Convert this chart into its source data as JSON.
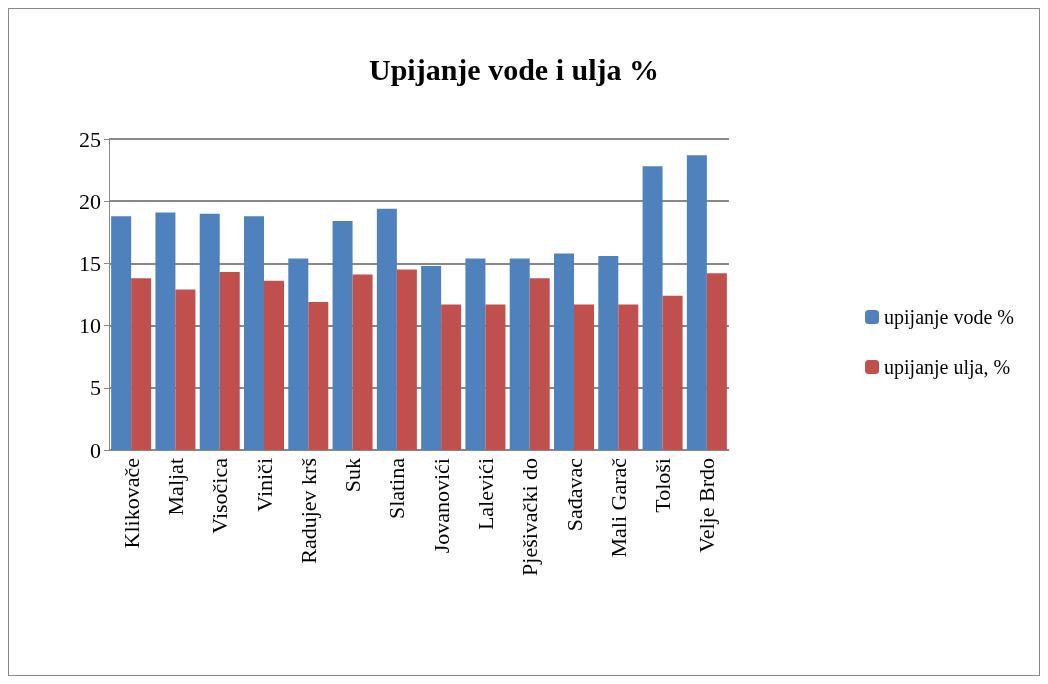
{
  "chart_data": {
    "type": "bar",
    "title": "Upijanje vode i ulja %",
    "categories": [
      "Klikovače",
      "Maljat",
      "Visočica",
      "Viniči",
      "Radujev krš",
      "Suk",
      "Slatina",
      "Jovanovići",
      "Lalevići",
      "Pješivački do",
      "Sađavac",
      "Mali Garač",
      "Tološi",
      "Velje Brdo"
    ],
    "series": [
      {
        "name": "upijanje vode %",
        "color": "#4f81bd",
        "values": [
          18.8,
          19.1,
          19.0,
          18.8,
          15.4,
          18.4,
          19.4,
          14.8,
          15.4,
          15.4,
          15.8,
          15.6,
          22.8,
          23.7
        ]
      },
      {
        "name": "upijanje ulja, %",
        "color": "#c0504d",
        "values": [
          13.8,
          12.9,
          14.3,
          13.6,
          11.9,
          14.1,
          14.5,
          11.7,
          11.7,
          13.8,
          11.7,
          11.7,
          12.4,
          14.2
        ]
      }
    ],
    "ylim": [
      0,
      25
    ],
    "yticks": [
      0,
      5,
      10,
      15,
      20,
      25
    ],
    "grid": "y",
    "legend": "right"
  }
}
